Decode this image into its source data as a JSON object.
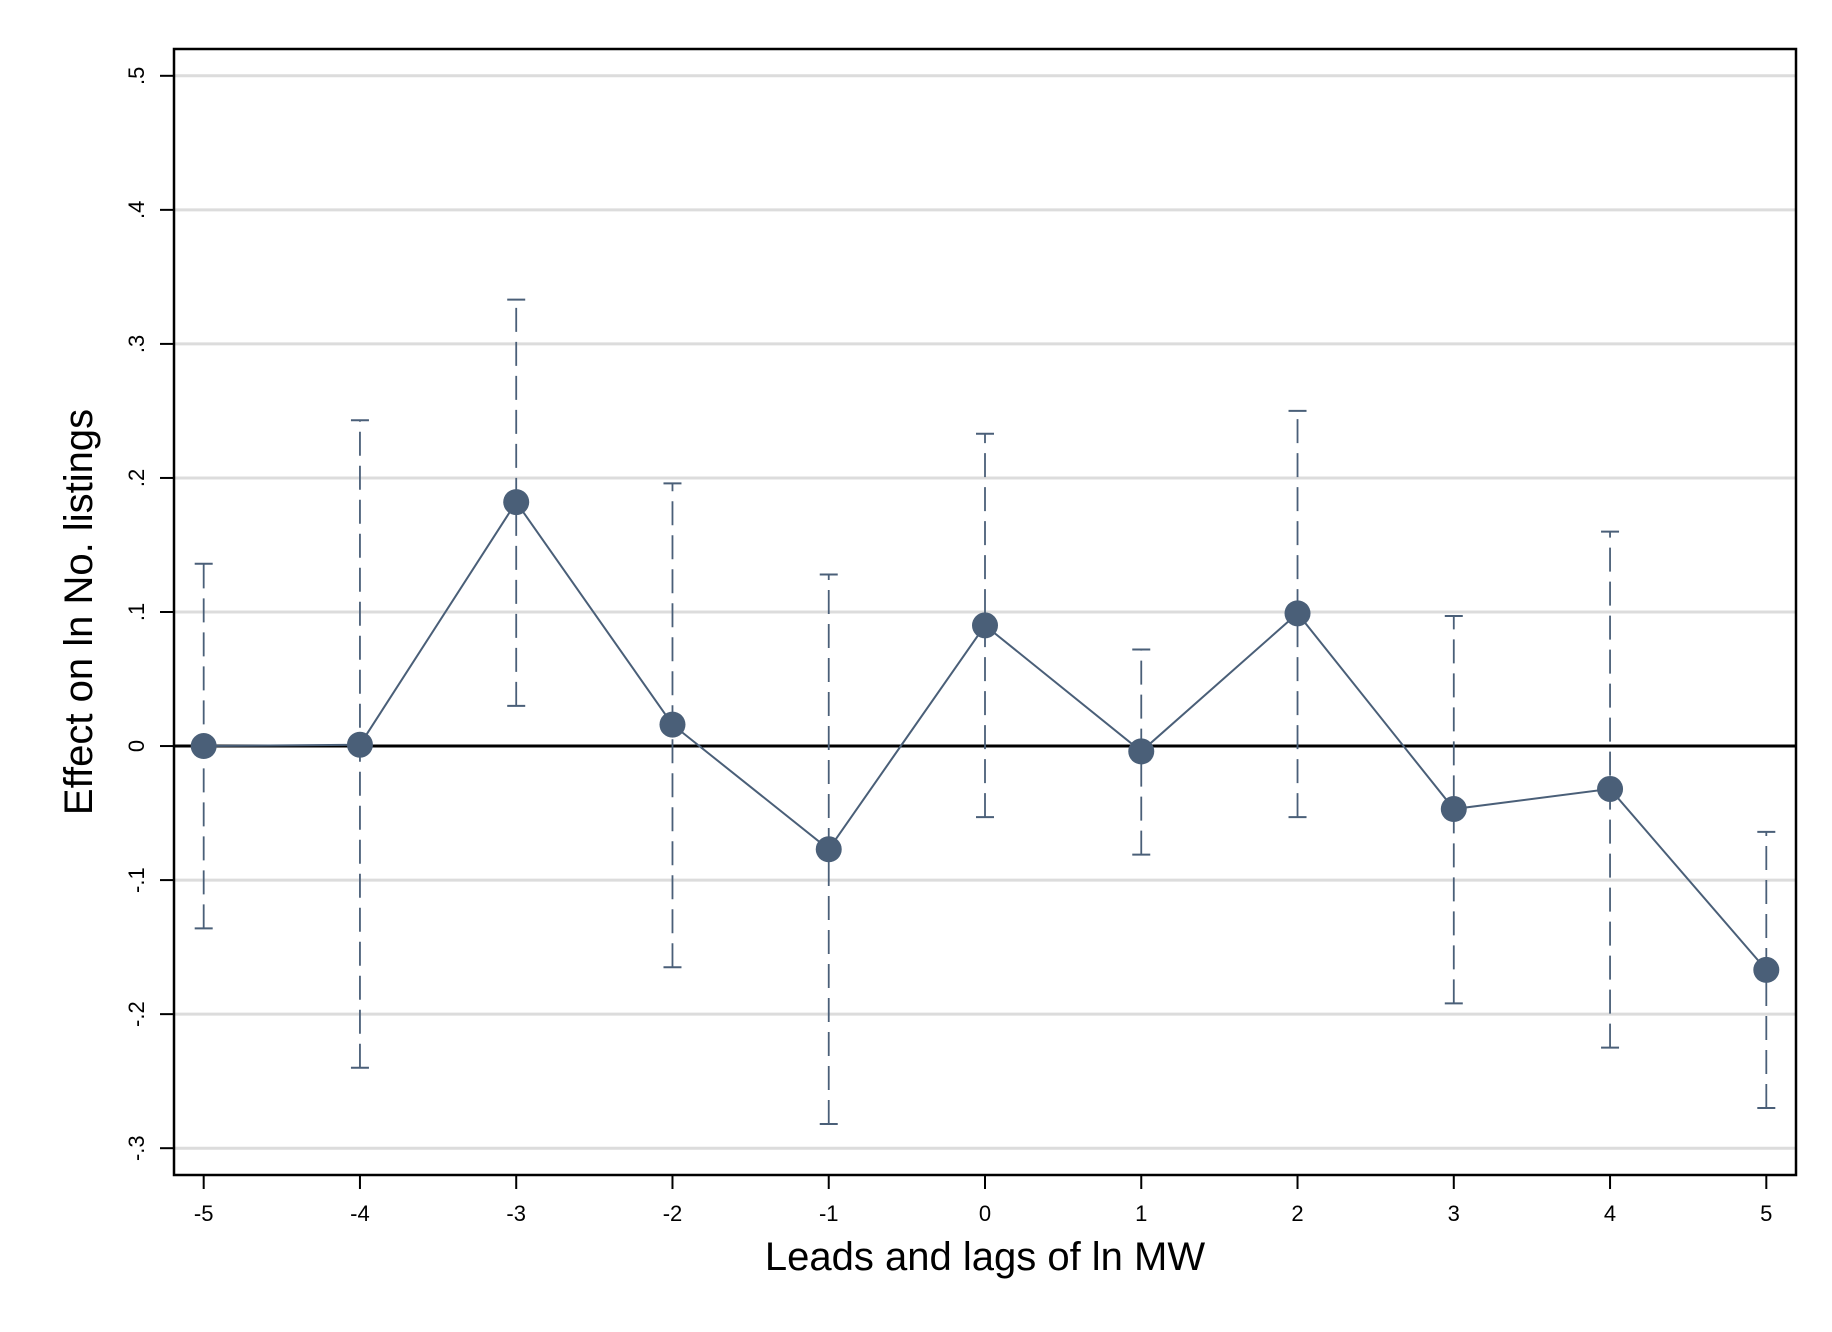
{
  "chart_data": {
    "type": "scatter",
    "xlabel": "Leads and lags of ln MW",
    "ylabel": "Effect on ln No. listings",
    "x_ticks": [
      "-5",
      "-4",
      "-3",
      "-2",
      "-1",
      "0",
      "1",
      "2",
      "3",
      "4",
      "5"
    ],
    "y_ticks": [
      "-.3",
      "-.2",
      "-.1",
      "0",
      ".1",
      ".2",
      ".3",
      ".4",
      ".5"
    ],
    "xlim": [
      -5.19,
      5.19
    ],
    "ylim": [
      -0.32,
      0.52
    ],
    "grid": true,
    "reference_line_y": 0,
    "marker_color": "#4a5f78",
    "line_color": "#4a5f78",
    "points": [
      {
        "x": -5,
        "y": 0.0,
        "ci_low": -0.136,
        "ci_high": 0.136
      },
      {
        "x": -4,
        "y": 0.001,
        "ci_low": -0.24,
        "ci_high": 0.243
      },
      {
        "x": -3,
        "y": 0.182,
        "ci_low": 0.03,
        "ci_high": 0.333
      },
      {
        "x": -2,
        "y": 0.016,
        "ci_low": -0.165,
        "ci_high": 0.196
      },
      {
        "x": -1,
        "y": -0.077,
        "ci_low": -0.282,
        "ci_high": 0.128
      },
      {
        "x": 0,
        "y": 0.09,
        "ci_low": -0.053,
        "ci_high": 0.233
      },
      {
        "x": 1,
        "y": -0.004,
        "ci_low": -0.081,
        "ci_high": 0.072
      },
      {
        "x": 2,
        "y": 0.099,
        "ci_low": -0.053,
        "ci_high": 0.25
      },
      {
        "x": 3,
        "y": -0.047,
        "ci_low": -0.192,
        "ci_high": 0.097
      },
      {
        "x": 4,
        "y": -0.032,
        "ci_low": -0.225,
        "ci_high": 0.16
      },
      {
        "x": 5,
        "y": -0.167,
        "ci_low": -0.27,
        "ci_high": -0.064
      }
    ]
  }
}
